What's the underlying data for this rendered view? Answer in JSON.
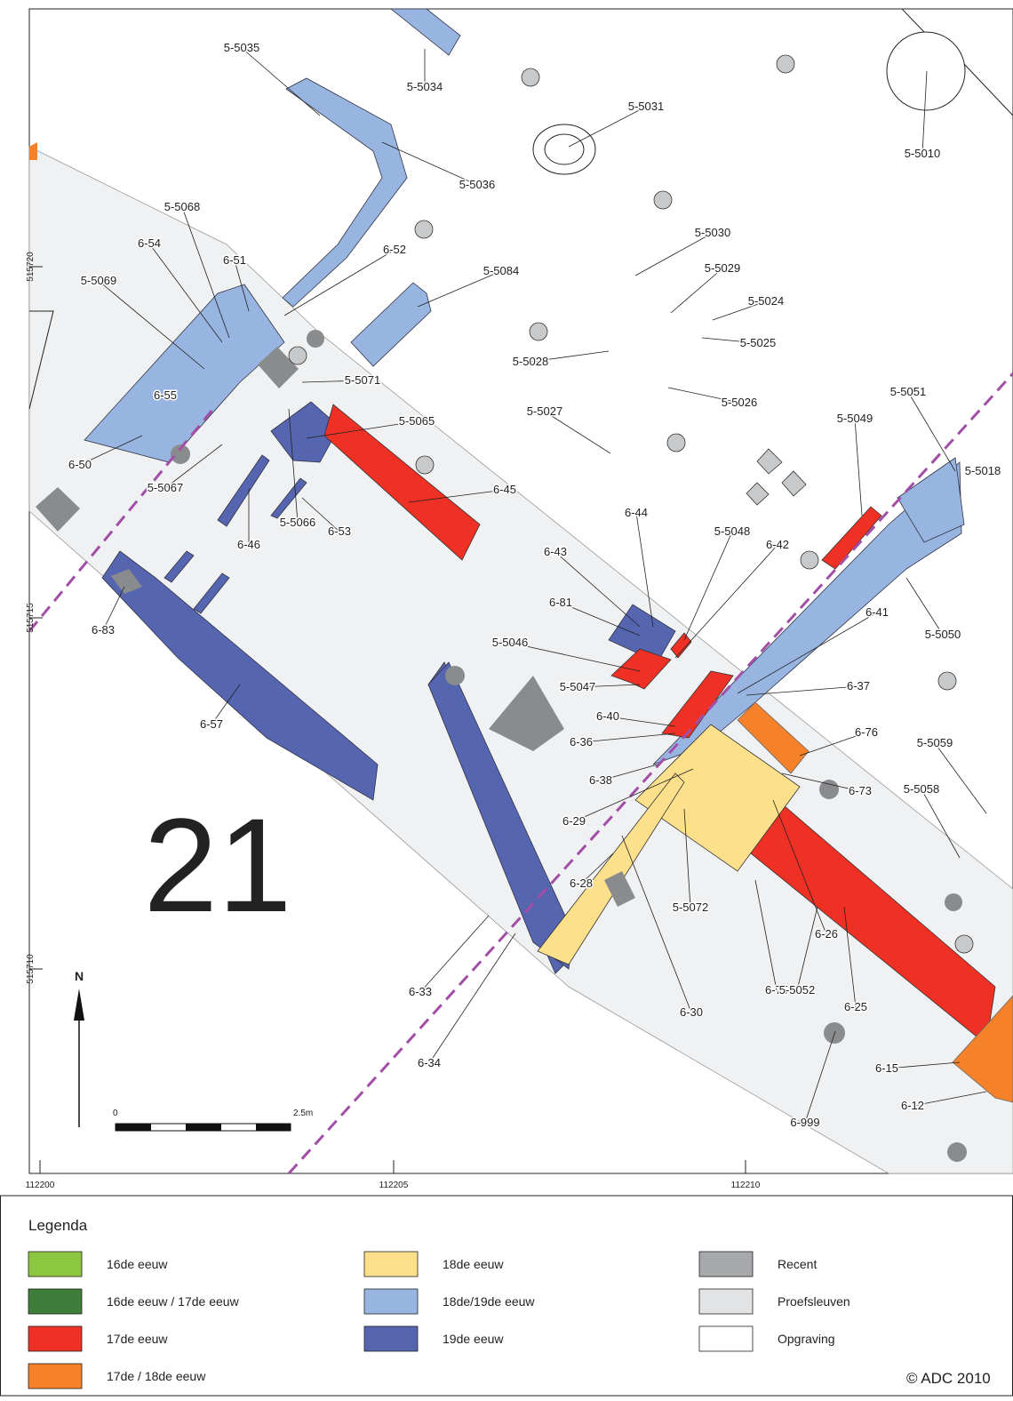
{
  "map": {
    "sheet_number": "21",
    "north": "N",
    "scale": {
      "start": "0",
      "end": "2.5m"
    },
    "y_coordinates": [
      "515720",
      "515715",
      "515710"
    ],
    "x_coordinates": [
      "112200",
      "112205",
      "112210"
    ],
    "labels": [
      "5-5035",
      "5-5034",
      "5-5031",
      "5-5010",
      "5-5036",
      "5-5068",
      "6-54",
      "6-51",
      "6-52",
      "5-5069",
      "5-5030",
      "5-5029",
      "5-5084",
      "5-5024",
      "5-5025",
      "5-5028",
      "5-5071",
      "6-55",
      "5-5026",
      "5-5027",
      "5-5051",
      "5-5049",
      "5-5065",
      "6-50",
      "5-5067",
      "6-45",
      "5-5018",
      "6-46",
      "5-5066",
      "6-53",
      "6-44",
      "5-5048",
      "6-42",
      "6-43",
      "6-81",
      "6-83",
      "6-41",
      "5-5050",
      "5-5046",
      "5-5047",
      "6-37",
      "6-40",
      "6-57",
      "6-36",
      "6-76",
      "5-5059",
      "6-38",
      "6-73",
      "5-5058",
      "6-29",
      "6-28",
      "5-5072",
      "6-33",
      "6-26",
      "6-30",
      "6-75",
      "5-5052",
      "6-25",
      "6-34",
      "6-15",
      "6-12",
      "6-999"
    ]
  },
  "legend": {
    "title": "Legenda",
    "items": [
      {
        "label": "16de eeuw",
        "color": "#8dc63f"
      },
      {
        "label": "16de eeuw / 17de eeuw",
        "color": "#3f7d3a"
      },
      {
        "label": "17de eeuw",
        "color": "#ee3124"
      },
      {
        "label": "17de / 18de eeuw",
        "color": "#f5822a"
      },
      {
        "label": "18de eeuw",
        "color": "#fde08b"
      },
      {
        "label": "18de/19de eeuw",
        "color": "#97b5e0"
      },
      {
        "label": "19de eeuw",
        "color": "#5565b0"
      },
      {
        "label": "Recent",
        "color": "#a7a9ac"
      },
      {
        "label": "Proefsleuven",
        "color": "#e2e3e4"
      },
      {
        "label": "Opgraving",
        "color": "#ffffff"
      }
    ]
  },
  "copyright": "© ADC 2010"
}
